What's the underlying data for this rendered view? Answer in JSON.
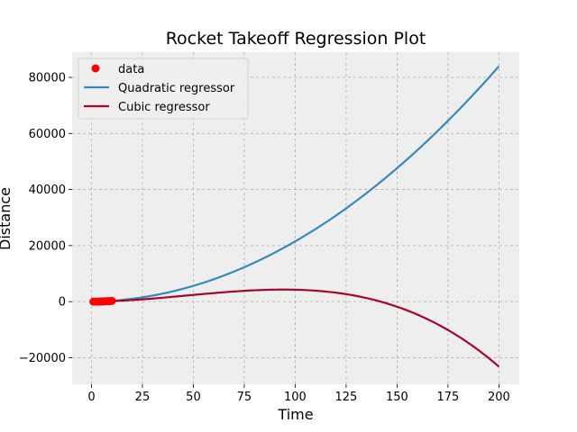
{
  "chart_data": {
    "type": "line",
    "title": "Rocket Takeoff Regression Plot",
    "xlabel": "Time",
    "ylabel": "Distance",
    "xlim": [
      -9.5,
      210
    ],
    "ylim": [
      -29500,
      89000
    ],
    "xticks": [
      0,
      25,
      50,
      75,
      100,
      125,
      150,
      175,
      200
    ],
    "yticks": [
      -20000,
      0,
      20000,
      40000,
      60000,
      80000
    ],
    "ytick_labels": [
      "−20000",
      "0",
      "20000",
      "40000",
      "60000",
      "80000"
    ],
    "grid": true,
    "legend_position": "top-left",
    "data": {
      "name": "data",
      "color": "#ff0000",
      "x": [
        1,
        2,
        3,
        4,
        5,
        6,
        7,
        8,
        9,
        10
      ],
      "y": [
        0,
        8,
        20,
        40,
        60,
        90,
        120,
        160,
        200,
        250
      ]
    },
    "series": [
      {
        "name": "Quadratic regressor",
        "color": "#348abd",
        "coefficients": [
          0,
          10,
          2.05
        ]
      },
      {
        "name": "Cubic regressor",
        "color": "#a60628",
        "coefficients": [
          0,
          4,
          1.37,
          -0.00985
        ]
      }
    ]
  }
}
